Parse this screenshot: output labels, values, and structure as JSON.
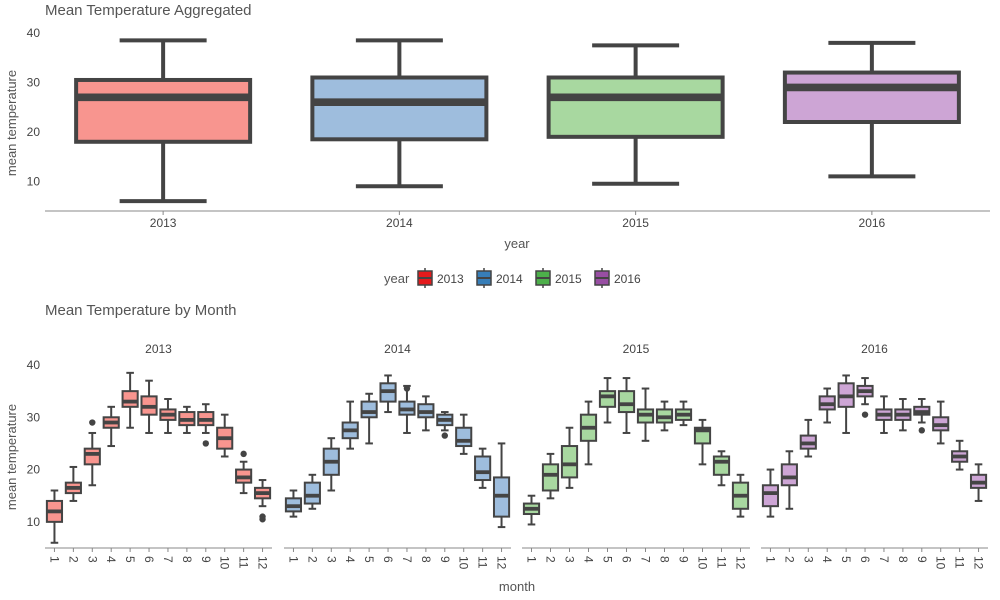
{
  "chart_data": [
    {
      "type": "box",
      "title": "Mean Temperature Aggregated",
      "xlabel": "year",
      "ylabel": "mean temperature",
      "yticks": [
        10,
        20,
        30,
        40
      ],
      "ylim": [
        4,
        40
      ],
      "categories": [
        "2013",
        "2014",
        "2015",
        "2016"
      ],
      "colors": [
        "#F8958F",
        "#9EBDDD",
        "#A8D8A0",
        "#CDA5D5"
      ],
      "boxes": [
        {
          "min": 6,
          "q1": 18,
          "median": 27,
          "q3": 30.5,
          "max": 38.5
        },
        {
          "min": 9,
          "q1": 18.5,
          "median": 26,
          "q3": 31,
          "max": 38.5
        },
        {
          "min": 9.5,
          "q1": 19,
          "median": 27,
          "q3": 31,
          "max": 37.5
        },
        {
          "min": 11,
          "q1": 22,
          "median": 29,
          "q3": 32,
          "max": 38
        }
      ]
    },
    {
      "type": "box",
      "title": "Mean Temperature by Month",
      "xlabel": "month",
      "ylabel": "mean temperature",
      "yticks": [
        10,
        20,
        30,
        40
      ],
      "ylim": [
        5,
        40
      ],
      "categories": [
        "1",
        "2",
        "3",
        "4",
        "5",
        "6",
        "7",
        "8",
        "9",
        "10",
        "11",
        "12"
      ],
      "facets": [
        {
          "label": "2013",
          "color": "#F8958F",
          "boxes": [
            {
              "min": 6,
              "q1": 10,
              "median": 12,
              "q3": 14,
              "max": 16
            },
            {
              "min": 14,
              "q1": 15.5,
              "median": 16.5,
              "q3": 17.5,
              "max": 20.5
            },
            {
              "min": 17,
              "q1": 21,
              "median": 23,
              "q3": 24,
              "max": 27,
              "outliers": [
                29
              ]
            },
            {
              "min": 24.5,
              "q1": 28,
              "median": 29,
              "q3": 30,
              "max": 32
            },
            {
              "min": 28,
              "q1": 32,
              "median": 33,
              "q3": 35,
              "max": 38.5
            },
            {
              "min": 27,
              "q1": 30.5,
              "median": 32,
              "q3": 34,
              "max": 37
            },
            {
              "min": 27,
              "q1": 29.5,
              "median": 30.5,
              "q3": 31.5,
              "max": 33.5
            },
            {
              "min": 27,
              "q1": 28.5,
              "median": 29.5,
              "q3": 31,
              "max": 32
            },
            {
              "min": 27,
              "q1": 28.5,
              "median": 29.5,
              "q3": 31,
              "max": 32.5,
              "outliers": [
                25
              ]
            },
            {
              "min": 22.5,
              "q1": 24,
              "median": 26,
              "q3": 28,
              "max": 30.5
            },
            {
              "min": 15.5,
              "q1": 17.5,
              "median": 18.5,
              "q3": 20,
              "max": 21.5,
              "outliers": [
                23
              ]
            },
            {
              "min": 13,
              "q1": 14.5,
              "median": 15.5,
              "q3": 16.5,
              "max": 18,
              "outliers": [
                11,
                10.5
              ]
            }
          ]
        },
        {
          "label": "2014",
          "color": "#9EBDDD",
          "boxes": [
            {
              "min": 11,
              "q1": 12,
              "median": 13,
              "q3": 14.5,
              "max": 16
            },
            {
              "min": 12.5,
              "q1": 13.5,
              "median": 15,
              "q3": 17.5,
              "max": 19
            },
            {
              "min": 16,
              "q1": 19,
              "median": 21.5,
              "q3": 24,
              "max": 26
            },
            {
              "min": 24,
              "q1": 26,
              "median": 27.5,
              "q3": 29,
              "max": 33
            },
            {
              "min": 25,
              "q1": 30,
              "median": 31,
              "q3": 33,
              "max": 34.5
            },
            {
              "min": 31,
              "q1": 33,
              "median": 35,
              "q3": 36.5,
              "max": 38
            },
            {
              "min": 27,
              "q1": 30.5,
              "median": 31.5,
              "q3": 33,
              "max": 36,
              "outliers": [
                35.5
              ]
            },
            {
              "min": 27.5,
              "q1": 30,
              "median": 31,
              "q3": 32.5,
              "max": 34
            },
            {
              "min": 27.5,
              "q1": 28.5,
              "median": 29.5,
              "q3": 30.5,
              "max": 31,
              "outliers": [
                26.5
              ]
            },
            {
              "min": 23,
              "q1": 24.5,
              "median": 25.5,
              "q3": 28,
              "max": 30.5
            },
            {
              "min": 16.5,
              "q1": 18,
              "median": 19.5,
              "q3": 22.5,
              "max": 24
            },
            {
              "min": 9,
              "q1": 11,
              "median": 15,
              "q3": 18.5,
              "max": 25
            }
          ]
        },
        {
          "label": "2015",
          "color": "#A8D8A0",
          "boxes": [
            {
              "min": 9.5,
              "q1": 11.5,
              "median": 12.5,
              "q3": 13.5,
              "max": 15
            },
            {
              "min": 14.5,
              "q1": 16,
              "median": 19,
              "q3": 21,
              "max": 23
            },
            {
              "min": 16.5,
              "q1": 18.5,
              "median": 21,
              "q3": 24.5,
              "max": 28
            },
            {
              "min": 21,
              "q1": 25.5,
              "median": 28,
              "q3": 30.5,
              "max": 33
            },
            {
              "min": 29,
              "q1": 32,
              "median": 34,
              "q3": 35,
              "max": 37.5
            },
            {
              "min": 27,
              "q1": 31,
              "median": 32.5,
              "q3": 35,
              "max": 37.5
            },
            {
              "min": 25.5,
              "q1": 29,
              "median": 30.5,
              "q3": 31.5,
              "max": 35.5
            },
            {
              "min": 27.5,
              "q1": 29,
              "median": 30,
              "q3": 31.5,
              "max": 33
            },
            {
              "min": 28.5,
              "q1": 29.5,
              "median": 30.5,
              "q3": 31.5,
              "max": 33
            },
            {
              "min": 21,
              "q1": 25,
              "median": 27.5,
              "q3": 28,
              "max": 29.5
            },
            {
              "min": 17,
              "q1": 19,
              "median": 21.5,
              "q3": 22.5,
              "max": 23.5
            },
            {
              "min": 11,
              "q1": 12.5,
              "median": 15,
              "q3": 17.5,
              "max": 19
            }
          ]
        },
        {
          "label": "2016",
          "color": "#CDA5D5",
          "boxes": [
            {
              "min": 11,
              "q1": 13,
              "median": 15.5,
              "q3": 17,
              "max": 20
            },
            {
              "min": 12.5,
              "q1": 17,
              "median": 18.5,
              "q3": 21,
              "max": 23.5
            },
            {
              "min": 22.5,
              "q1": 24,
              "median": 25,
              "q3": 26.5,
              "max": 29.5
            },
            {
              "min": 29,
              "q1": 31.5,
              "median": 32.5,
              "q3": 34,
              "max": 35.5
            },
            {
              "min": 27,
              "q1": 32,
              "median": 34,
              "q3": 36.5,
              "max": 38
            },
            {
              "min": 32.5,
              "q1": 34,
              "median": 35,
              "q3": 36,
              "max": 37.5,
              "outliers": [
                30.5
              ]
            },
            {
              "min": 27,
              "q1": 29.5,
              "median": 30.5,
              "q3": 31.5,
              "max": 34
            },
            {
              "min": 27.5,
              "q1": 29.5,
              "median": 30.5,
              "q3": 31.5,
              "max": 33.5
            },
            {
              "min": 29,
              "q1": 30.5,
              "median": 31,
              "q3": 32,
              "max": 33.5,
              "outliers": [
                27.5
              ]
            },
            {
              "min": 25,
              "q1": 27.5,
              "median": 28.5,
              "q3": 30,
              "max": 33
            },
            {
              "min": 20,
              "q1": 21.5,
              "median": 22.5,
              "q3": 23.5,
              "max": 25.5
            },
            {
              "min": 14,
              "q1": 16.5,
              "median": 17.5,
              "q3": 19,
              "max": 21
            }
          ]
        }
      ]
    }
  ],
  "legend": {
    "title": "year",
    "placement": "center",
    "items": [
      {
        "label": "2013",
        "color": "#E41A1C"
      },
      {
        "label": "2014",
        "color": "#377EB8"
      },
      {
        "label": "2015",
        "color": "#4DAF4A"
      },
      {
        "label": "2016",
        "color": "#984EA3"
      }
    ]
  }
}
